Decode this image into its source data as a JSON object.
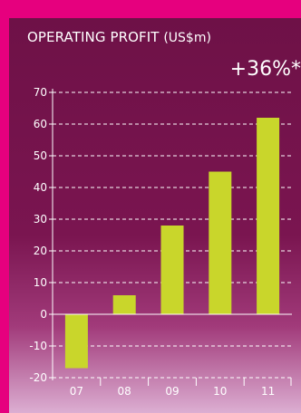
{
  "colors": {
    "frame": "#e6007e",
    "bar": "#c9d62b",
    "text": "#ffffff"
  },
  "header": {
    "title": "OPERATING PROFIT",
    "unit": "(US$m)",
    "change": "+36%*"
  },
  "chart_data": {
    "type": "bar",
    "categories": [
      "07",
      "08",
      "09",
      "10",
      "11"
    ],
    "values": [
      -17,
      6,
      28,
      45,
      62
    ],
    "ylim": [
      -20,
      70
    ],
    "yticks": [
      70,
      60,
      50,
      40,
      30,
      20,
      10,
      0,
      -10,
      -20
    ],
    "grid": true,
    "xlabel": "",
    "ylabel": ""
  }
}
